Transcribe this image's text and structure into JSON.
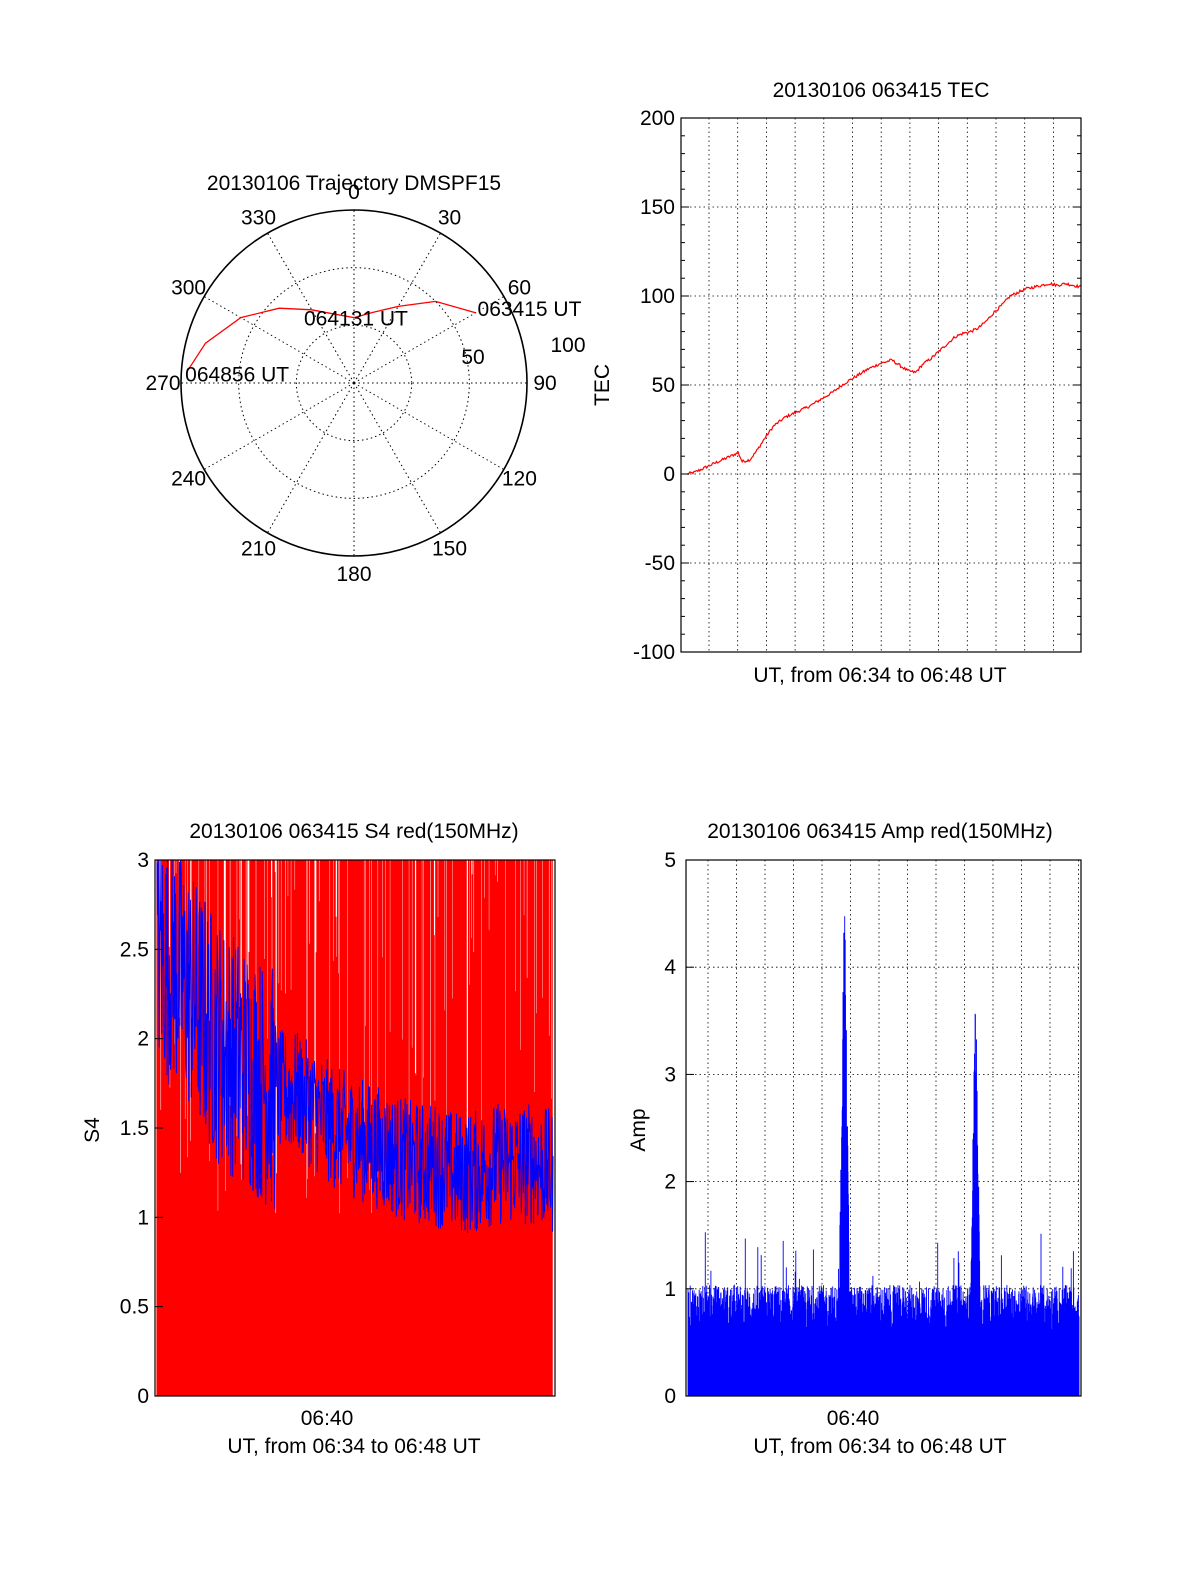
{
  "chart_data": [
    {
      "type": "polar",
      "title": "20130106 Trajectory DMSPF15",
      "angle_labels": [
        "0",
        "30",
        "60",
        "90",
        "120",
        "150",
        "180",
        "210",
        "240",
        "270",
        "300",
        "330"
      ],
      "radial_labels": [
        "50",
        "100"
      ],
      "series": [
        {
          "color": "#ff0000",
          "points": [
            {
              "az": 60,
              "el": 17
            },
            {
              "az": 45,
              "el": 30
            },
            {
              "az": 30,
              "el": 44
            },
            {
              "az": 15,
              "el": 52
            },
            {
              "az": 0,
              "el": 56
            },
            {
              "az": -15,
              "el": 53
            },
            {
              "az": -30,
              "el": 46
            },
            {
              "az": -45,
              "el": 35
            },
            {
              "az": -60,
              "el": 22
            },
            {
              "az": -75,
              "el": 10
            },
            {
              "az": -86,
              "el": 3
            }
          ]
        }
      ],
      "annotations": [
        {
          "text": "063415 UT",
          "az": 60,
          "el": 17
        },
        {
          "text": "064131 UT",
          "az": 0,
          "el": 56
        },
        {
          "text": "064856 UT",
          "az": -86,
          "el": 3
        }
      ]
    },
    {
      "type": "line",
      "title": "20130106 063415 TEC",
      "xlabel": "UT, from 06:34 to 06:48 UT",
      "ylabel": "TEC",
      "ylim": [
        -100,
        200
      ],
      "yticks": [
        "200",
        "150",
        "100",
        "50",
        "0",
        "-50",
        "-100"
      ],
      "grid": true,
      "series": [
        {
          "color": "#ff0000",
          "x": [
            0,
            0.02,
            0.05,
            0.08,
            0.11,
            0.13,
            0.14,
            0.16,
            0.18,
            0.2,
            0.22,
            0.25,
            0.28,
            0.31,
            0.34,
            0.37,
            0.4,
            0.43,
            0.46,
            0.49,
            0.52,
            0.54,
            0.56,
            0.58,
            0.6,
            0.62,
            0.64,
            0.66,
            0.68,
            0.7,
            0.72,
            0.74,
            0.76,
            0.78,
            0.8,
            0.82,
            0.84,
            0.86,
            0.88,
            0.9,
            0.92,
            0.94,
            0.96,
            0.98,
            1.0
          ],
          "values": [
            0,
            1,
            4,
            7,
            10,
            12,
            7,
            8,
            14,
            21,
            27,
            32,
            35,
            38,
            42,
            46,
            51,
            55,
            59,
            62,
            64,
            61,
            58,
            57,
            62,
            65,
            69,
            73,
            77,
            79,
            80,
            82,
            86,
            91,
            95,
            100,
            102,
            104,
            105,
            106,
            107,
            106,
            107,
            106,
            105
          ]
        }
      ]
    },
    {
      "type": "line",
      "title": "20130106 063415 S4 red(150MHz)",
      "xlabel": "UT, from 06:34 to 06:48 UT",
      "ylabel": "S4",
      "ylim": [
        0,
        3
      ],
      "yticks": [
        "3",
        "2.5",
        "2",
        "1.5",
        "1",
        "0.5",
        "0"
      ],
      "xticks": [
        "06:40"
      ],
      "series": [
        {
          "color": "#ff0000",
          "range": [
            0,
            3
          ]
        },
        {
          "color": "#0000ff",
          "x": [
            0,
            0.05,
            0.1,
            0.15,
            0.2,
            0.25,
            0.3,
            0.35,
            0.4,
            0.45,
            0.5,
            0.55,
            0.6,
            0.65,
            0.7,
            0.75,
            0.8,
            0.85,
            0.9,
            0.95,
            1.0
          ],
          "values": [
            2.5,
            2.4,
            2.2,
            2.0,
            1.9,
            1.8,
            1.7,
            1.7,
            1.6,
            1.5,
            1.45,
            1.4,
            1.35,
            1.3,
            1.3,
            1.25,
            1.25,
            1.3,
            1.3,
            1.3,
            1.25
          ]
        }
      ]
    },
    {
      "type": "line",
      "title": "20130106 063415 Amp red(150MHz)",
      "xlabel": "UT, from 06:34 to 06:48 UT",
      "ylabel": "Amp",
      "ylim": [
        0,
        5
      ],
      "yticks": [
        "5",
        "4",
        "3",
        "2",
        "1",
        "0"
      ],
      "xticks": [
        "06:40"
      ],
      "grid": true,
      "series": [
        {
          "color": "#0000ff",
          "baseline": 0.9,
          "peaks": [
            {
              "x": 0.4,
              "value": 4.88
            },
            {
              "x": 0.735,
              "value": 4.0
            }
          ]
        }
      ]
    }
  ]
}
